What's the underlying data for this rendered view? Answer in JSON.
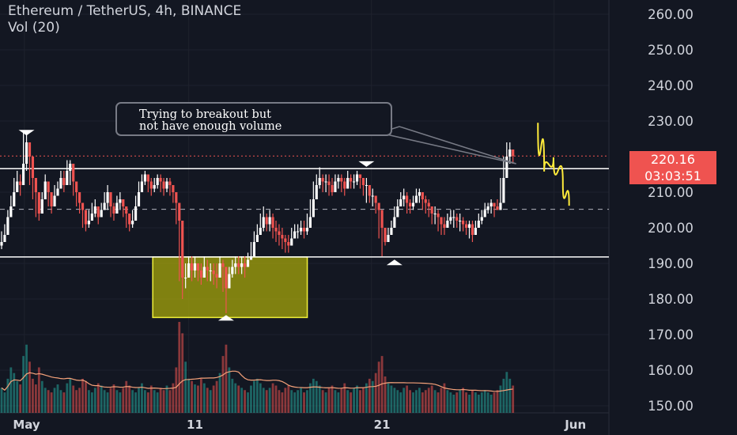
{
  "header": {
    "symbol_line": "Ethereum / TetherUS, 4h, BINANCE",
    "indicator_line": "Vol (20)"
  },
  "price_labels": {
    "current_price": "220.16",
    "countdown": "03:03:51"
  },
  "annotation": {
    "line1": "Trying to breakout but",
    "line2": "not have enough volume"
  },
  "colors": {
    "background": "#131722",
    "up": "#26a69a",
    "down": "#ef5350",
    "candle_body": "#ffffff",
    "box_fill": "#9c9c0c",
    "box_border": "#f0f03a",
    "projection": "#ffeb3b",
    "volume_ma": "#f5a27a",
    "axis_text": "#d1d4dc"
  },
  "chart_data": {
    "type": "candlestick",
    "interval": "4h",
    "yaxis": {
      "ticks": [
        "260.00",
        "250.00",
        "240.00",
        "230.00",
        "210.00",
        "200.00",
        "190.00",
        "180.00",
        "170.00",
        "160.00",
        "150.00"
      ],
      "range": [
        148,
        264
      ]
    },
    "xaxis": {
      "ticks": [
        {
          "label": "May",
          "index": 8
        },
        {
          "label": "11",
          "index": 62
        },
        {
          "label": "21",
          "index": 122
        },
        {
          "label": "Jun",
          "index": 182
        }
      ],
      "range": [
        0,
        200
      ]
    },
    "horizontal_levels": [
      {
        "price": 216.6,
        "style": "solid"
      },
      {
        "price": 191.8,
        "style": "solid"
      },
      {
        "price": 205.2,
        "style": "dashed"
      },
      {
        "price": 220.16,
        "style": "dotted-current"
      }
    ],
    "consolidation_box": {
      "x0": 50,
      "x1": 96,
      "y0": 191.8,
      "y1": 174.8
    },
    "markers": [
      {
        "index": 8,
        "price": 226.6,
        "shape": "down-triangle"
      },
      {
        "index": 117,
        "price": 217.8,
        "shape": "down-triangle"
      },
      {
        "index": 126,
        "price": 190.4,
        "shape": "up-triangle"
      },
      {
        "index": 72,
        "price": 174.8,
        "shape": "up-triangle"
      }
    ],
    "projection_path": [
      [
        172,
        229.5
      ],
      [
        174,
        215.8
      ],
      [
        177,
        219.8
      ],
      [
        180,
        212.5
      ],
      [
        182,
        206.2
      ]
    ],
    "series": [
      {
        "name": "ETHUSDT",
        "close": [
          196,
          198,
          203,
          206,
          210,
          213,
          212,
          218,
          224,
          220,
          214,
          210,
          204,
          208,
          213,
          210,
          206,
          209,
          211,
          214,
          212,
          216,
          218,
          213,
          210,
          207,
          205,
          201,
          202,
          204,
          206,
          203,
          205,
          207,
          210,
          206,
          204,
          207,
          208,
          206,
          204,
          201,
          202,
          206,
          210,
          213,
          215,
          213,
          211,
          212,
          214,
          213,
          211,
          213,
          212,
          210,
          207,
          202,
          186,
          186,
          190,
          188,
          190,
          188,
          186,
          189,
          188,
          188,
          187,
          186,
          190,
          189,
          183,
          187,
          189,
          190,
          189,
          190,
          189,
          191,
          192,
          196,
          198,
          200,
          203,
          201,
          203,
          200,
          199,
          198,
          197,
          196,
          195,
          197,
          199,
          199,
          200,
          199,
          200,
          203,
          208,
          212,
          214,
          213,
          213,
          212,
          210,
          213,
          214,
          213,
          211,
          214,
          213,
          213,
          215,
          214,
          212,
          212,
          209,
          209,
          207,
          205,
          200,
          196,
          198,
          200,
          203,
          206,
          208,
          209,
          207,
          206,
          207,
          209,
          210,
          208,
          207,
          206,
          204,
          204,
          203,
          201,
          200,
          202,
          203,
          203,
          202,
          202,
          201,
          200,
          201,
          198,
          200,
          202,
          203,
          205,
          206,
          207,
          206,
          205,
          207,
          214,
          220,
          222,
          220.16
        ],
        "high": [
          199,
          201,
          205,
          209,
          214,
          216,
          215,
          227,
          227,
          221,
          217,
          213,
          207,
          210,
          215,
          212,
          210,
          212,
          213,
          216,
          216,
          219,
          219,
          215,
          213,
          210,
          207,
          205,
          205,
          207,
          208,
          206,
          207,
          210,
          212,
          209,
          207,
          209,
          210,
          208,
          206,
          204,
          205,
          209,
          213,
          215,
          216,
          215,
          214,
          214,
          215,
          215,
          214,
          214,
          214,
          212,
          210,
          204,
          192,
          190,
          192,
          192,
          192,
          190,
          190,
          192,
          191,
          190,
          190,
          190,
          192,
          191,
          188,
          189,
          191,
          192,
          192,
          192,
          192,
          193,
          196,
          199,
          201,
          204,
          206,
          204,
          205,
          204,
          202,
          201,
          200,
          198,
          198,
          200,
          201,
          201,
          202,
          202,
          204,
          208,
          213,
          215,
          217,
          215,
          215,
          215,
          214,
          215,
          215,
          215,
          214,
          216,
          215,
          215,
          216,
          215,
          214,
          214,
          212,
          211,
          209,
          207,
          203,
          198,
          200,
          202,
          206,
          208,
          210,
          211,
          210,
          208,
          209,
          211,
          211,
          210,
          209,
          208,
          206,
          206,
          205,
          203,
          203,
          204,
          205,
          205,
          204,
          204,
          203,
          202,
          202,
          202,
          202,
          204,
          205,
          207,
          207,
          208,
          207,
          208,
          214,
          220,
          224,
          224,
          222
        ],
        "low": [
          194,
          196,
          201,
          204,
          208,
          210,
          209,
          216,
          216,
          212,
          208,
          203,
          202,
          206,
          210,
          206,
          204,
          207,
          209,
          211,
          210,
          213,
          212,
          209,
          206,
          204,
          200,
          199,
          200,
          202,
          203,
          201,
          203,
          205,
          205,
          203,
          202,
          205,
          205,
          203,
          200,
          199,
          200,
          204,
          208,
          210,
          212,
          210,
          209,
          210,
          211,
          210,
          209,
          210,
          209,
          207,
          201,
          185,
          180,
          183,
          186,
          185,
          186,
          185,
          184,
          186,
          185,
          185,
          184,
          183,
          186,
          182,
          176,
          183,
          186,
          187,
          187,
          187,
          186,
          189,
          191,
          194,
          196,
          199,
          199,
          199,
          199,
          197,
          196,
          195,
          194,
          193,
          193,
          195,
          197,
          197,
          198,
          197,
          198,
          202,
          206,
          210,
          211,
          210,
          210,
          209,
          209,
          210,
          211,
          210,
          209,
          211,
          211,
          211,
          212,
          211,
          209,
          207,
          207,
          206,
          204,
          197,
          192,
          195,
          196,
          198,
          201,
          204,
          206,
          206,
          204,
          204,
          205,
          207,
          207,
          205,
          204,
          203,
          201,
          201,
          199,
          198,
          198,
          200,
          201,
          200,
          200,
          199,
          199,
          198,
          197,
          196,
          198,
          200,
          201,
          203,
          204,
          204,
          203,
          205,
          206,
          212,
          218,
          218,
          218
        ],
        "volume": [
          22,
          18,
          30,
          40,
          35,
          28,
          25,
          50,
          60,
          45,
          30,
          25,
          40,
          28,
          22,
          20,
          18,
          22,
          25,
          20,
          18,
          26,
          30,
          24,
          20,
          22,
          30,
          28,
          20,
          18,
          22,
          26,
          24,
          20,
          18,
          22,
          25,
          20,
          18,
          22,
          28,
          24,
          20,
          18,
          22,
          26,
          20,
          18,
          24,
          20,
          18,
          22,
          20,
          24,
          20,
          26,
          40,
          80,
          70,
          45,
          30,
          28,
          25,
          24,
          30,
          26,
          22,
          20,
          24,
          28,
          35,
          50,
          60,
          40,
          30,
          26,
          24,
          22,
          20,
          18,
          24,
          28,
          30,
          26,
          22,
          20,
          22,
          26,
          24,
          20,
          18,
          22,
          24,
          20,
          18,
          20,
          22,
          18,
          20,
          26,
          30,
          28,
          24,
          20,
          18,
          22,
          24,
          20,
          18,
          22,
          26,
          20,
          18,
          22,
          24,
          20,
          22,
          26,
          30,
          28,
          35,
          45,
          50,
          32,
          26,
          24,
          22,
          20,
          18,
          22,
          24,
          20,
          18,
          20,
          22,
          18,
          20,
          22,
          24,
          20,
          18,
          22,
          26,
          20,
          18,
          16,
          18,
          20,
          22,
          18,
          16,
          20,
          18,
          16,
          18,
          20,
          18,
          16,
          18,
          20,
          24,
          30,
          36,
          30,
          24
        ]
      }
    ]
  }
}
